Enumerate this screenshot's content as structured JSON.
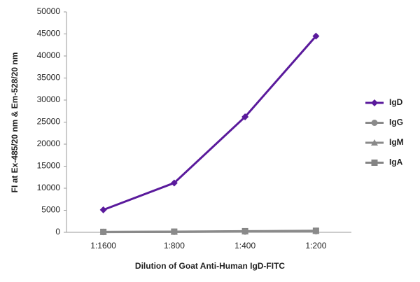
{
  "chart_data": {
    "type": "line",
    "x_label": "Dilution of Goat Anti-Human IgD-FITC",
    "y_label": "FI at Ex-485/20 nm & Em-528/20 nm",
    "categories": [
      "1:1600",
      "1:800",
      "1:400",
      "1:200"
    ],
    "series": [
      {
        "name": "IgD",
        "color": "#5a1a9c",
        "marker": "diamond",
        "values": [
          5100,
          11200,
          26200,
          44500
        ]
      },
      {
        "name": "IgG",
        "color": "#8a8a8a",
        "marker": "circle",
        "values": [
          50,
          100,
          150,
          250
        ]
      },
      {
        "name": "IgM",
        "color": "#8a8a8a",
        "marker": "triangle",
        "values": [
          80,
          120,
          200,
          300
        ]
      },
      {
        "name": "IgA",
        "color": "#848484",
        "marker": "square",
        "values": [
          100,
          150,
          250,
          350
        ]
      }
    ],
    "ylim": [
      0,
      50000
    ],
    "yticks": [
      0,
      5000,
      10000,
      15000,
      20000,
      25000,
      30000,
      35000,
      40000,
      45000,
      50000
    ],
    "legend": "right"
  }
}
